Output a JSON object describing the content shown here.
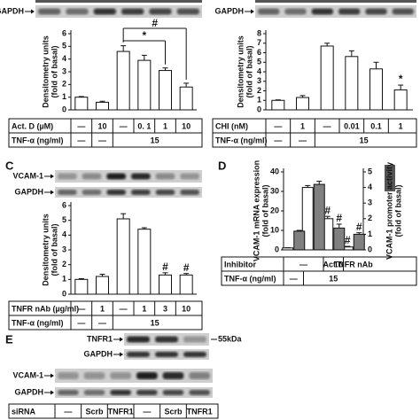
{
  "chart_data": [
    {
      "type": "bar",
      "blots": [
        "GAPDH"
      ],
      "ylabel": [
        "Densitometry units",
        "(fold of basal)"
      ],
      "values": [
        1,
        0.6,
        4.6,
        3.9,
        3.1,
        1.8
      ],
      "errors": [
        0.05,
        0.08,
        0.45,
        0.4,
        0.2,
        0.3
      ],
      "color": "#ffffff",
      "ylim": [
        0,
        6
      ],
      "yticks": [
        0,
        1,
        2,
        3,
        4,
        5,
        6
      ],
      "annotations": [
        "*",
        "#"
      ],
      "rows": [
        {
          "label": "Act. D (µM)",
          "cells": [
            "—",
            "10",
            "—",
            "0. 1",
            "1",
            "10"
          ]
        },
        {
          "label": "TNF-α (ng/ml)",
          "cells": [
            "—",
            "—",
            "15"
          ]
        }
      ]
    },
    {
      "type": "bar",
      "blots": [
        "GAPDH"
      ],
      "ylabel": [
        "Densitometry units",
        "(fold of basal)"
      ],
      "values": [
        1,
        1.3,
        6.7,
        5.6,
        4.3,
        2.1
      ],
      "errors": [
        0.05,
        0.2,
        0.3,
        0.6,
        0.7,
        0.5
      ],
      "color": "#ffffff",
      "ylim": [
        0,
        8
      ],
      "yticks": [
        0,
        1,
        2,
        3,
        4,
        5,
        6,
        7,
        8
      ],
      "annotations": [
        "*"
      ],
      "rows": [
        {
          "label": "CHI (nM)",
          "cells": [
            "—",
            "1",
            "—",
            "0.01",
            "0.1",
            "1"
          ]
        },
        {
          "label": "TNF-α (ng/ml)",
          "cells": [
            "—",
            "—",
            "15"
          ]
        }
      ]
    },
    {
      "type": "bar",
      "label": "C",
      "blots": [
        "VCAM-1",
        "GAPDH"
      ],
      "ylabel": [
        "Densitometry units",
        "(fold of basal)"
      ],
      "values": [
        1,
        1.2,
        5.1,
        4.4,
        1.3,
        1.3
      ],
      "errors": [
        0.05,
        0.15,
        0.35,
        0.1,
        0.15,
        0.1
      ],
      "color": "#ffffff",
      "ylim": [
        0,
        6
      ],
      "yticks": [
        0,
        1,
        2,
        3,
        4,
        5,
        6
      ],
      "annotations": [
        "#",
        "#"
      ],
      "rows": [
        {
          "label": "TNFR nAb (µg/ml)",
          "cells": [
            "—",
            "1",
            "—",
            "1",
            "3",
            "10"
          ]
        },
        {
          "label": "TNF-α (ng/ml)",
          "cells": [
            "—",
            "—",
            "15"
          ]
        }
      ]
    },
    {
      "type": "bar",
      "label": "D",
      "ylabel": [
        "VCAM-1 mRNA expression",
        "(fold of basal)"
      ],
      "y2label": [
        "VCAM-1 promoter activity",
        "(fold of basal)"
      ],
      "series": [
        {
          "color": "#ffffff",
          "values": [
            1,
            32,
            16,
            1.5
          ],
          "errors": [
            0.1,
            1,
            1.2,
            0.3
          ]
        },
        {
          "color": "#808080",
          "axis": "y2",
          "values": [
            1.2,
            4.2,
            1.4,
            1.0
          ],
          "errors": [
            0.05,
            0.2,
            0.25,
            0.1
          ]
        }
      ],
      "ylim": [
        0,
        40
      ],
      "yticks": [
        0,
        10,
        20,
        30,
        40
      ],
      "y2lim": [
        0,
        5
      ],
      "y2ticks": [
        0,
        1,
        2,
        3,
        4,
        5
      ],
      "annotations": [
        "#",
        "#",
        "#",
        "#"
      ],
      "rows": [
        {
          "label": "Inhibitor",
          "cells": [
            "—",
            "Act.D",
            "TNFR nAb"
          ]
        },
        {
          "label": "TNF-α (ng/ml)",
          "cells": [
            "—",
            "15"
          ]
        }
      ]
    }
  ],
  "panel_e": {
    "label": "E",
    "blots": [
      {
        "label": "TNFR1",
        "marker": "55kDa"
      },
      {
        "label": "GAPDH"
      },
      {
        "label": "VCAM-1"
      },
      {
        "label": "GAPDH"
      }
    ],
    "rows": [
      {
        "label": "siRNA",
        "cells": [
          "—",
          "Scrb",
          "TNFR1",
          "—",
          "Scrb",
          "TNFR1"
        ]
      }
    ]
  }
}
